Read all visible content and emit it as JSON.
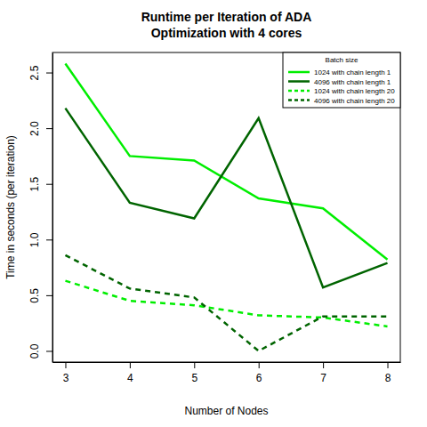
{
  "chart_data": {
    "type": "line",
    "title": [
      "Runtime per Iteration of ADA",
      "Optimization with 4 cores"
    ],
    "x_label": "Number of Nodes",
    "y_label": "Time in seconds (per iteration)",
    "x": [
      3,
      4,
      5,
      6,
      7,
      8
    ],
    "xlim": [
      2.8,
      8.2
    ],
    "xticks": [
      3,
      4,
      5,
      6,
      7,
      8
    ],
    "ylim": [
      -0.1,
      2.68
    ],
    "yticks": [
      {
        "value": 0,
        "label": "0.0"
      },
      0.5,
      {
        "value": 1,
        "label": "1.0"
      },
      1.5,
      {
        "value": 2,
        "label": "2.0"
      },
      2.5
    ],
    "legend": "topright",
    "legend_title": "Batch size",
    "series": [
      {
        "name": "1024 with chain length 1",
        "color": "#00ee00",
        "line_style": "solid",
        "values": [
          2.58,
          1.75,
          1.71,
          1.37,
          1.28,
          0.82
        ]
      },
      {
        "name": "4096 with chain length 1",
        "color": "#006400",
        "line_style": "solid",
        "values": [
          2.18,
          1.33,
          1.19,
          2.09,
          0.57,
          0.79
        ]
      },
      {
        "name": "1024 with chain length 20",
        "color": "#00ee00",
        "line_style": "dashed",
        "values": [
          0.63,
          0.45,
          0.41,
          0.32,
          0.3,
          0.22
        ]
      },
      {
        "name": "4096 with chain length 20",
        "color": "#006400",
        "line_style": "dashed",
        "values": [
          0.86,
          0.56,
          0.48,
          0.0,
          0.31,
          0.31
        ]
      }
    ]
  }
}
